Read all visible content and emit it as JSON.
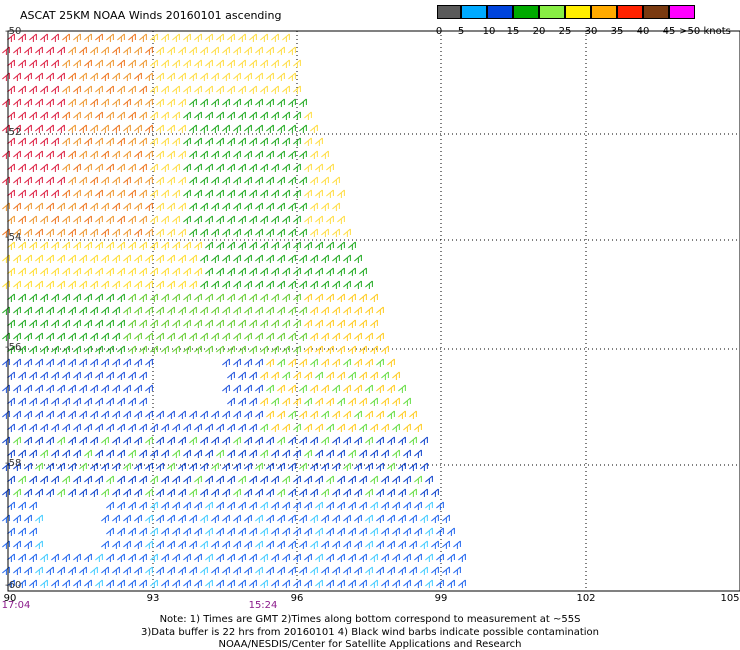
{
  "title": "ASCAT 25KM NOAA Winds 20160101 ascending",
  "colorbar": {
    "labels": [
      "0",
      "5",
      "10",
      "15",
      "20",
      "25",
      "30",
      "35",
      "40",
      "45",
      ">50 knots"
    ],
    "colors": [
      "#5a5a5a",
      "#00aaff",
      "#0044dd",
      "#00aa00",
      "#88ee44",
      "#ffee00",
      "#ffaa00",
      "#ff2200",
      "#7a3a10",
      "#ff00ff",
      "#6a00aa"
    ]
  },
  "latitude_labels": [
    "-50",
    "-52",
    "-54",
    "-56",
    "-58",
    "-60"
  ],
  "longitude_labels": [
    "90",
    "93",
    "96",
    "99",
    "102",
    "105"
  ],
  "time_labels": [
    "17:04",
    "15:24"
  ],
  "notes": [
    "Note: 1) Times are GMT 2)Times along bottom correspond to measurement at ~55S",
    "3)Data buffer is 22 hrs from 20160101 4) Black wind barbs indicate possible contamination",
    "NOAA/NESDIS/Center for Satellite Applications and Research"
  ]
}
